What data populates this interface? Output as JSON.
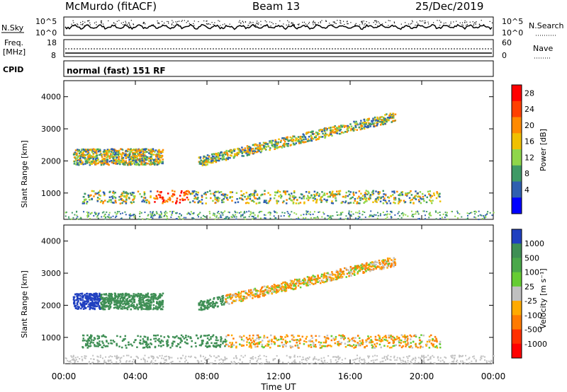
{
  "header": {
    "station": "McMurdo (fitACF)",
    "beam": "Beam 13",
    "date": "25/Dec/2019"
  },
  "labels": {
    "nsky": "N.Sky",
    "nsearch": "N.Search",
    "freq_top": "Freq.",
    "freq_unit": "[MHz]",
    "nave": "Nave",
    "cpid": "CPID",
    "cpid_value": "normal (fast) 151 RF",
    "y_left_top": "10^5",
    "y_left_bottom": "10^0",
    "y_right_top": "10^5",
    "y_right_bottom": "10^0",
    "freq_max": "18",
    "freq_min": "8",
    "nave_max": "60",
    "nave_min": "0"
  },
  "chart_data": [
    {
      "type": "heatmap",
      "title": "Power",
      "ylabel": "Slant Range [km]",
      "xlabel": "Time UT",
      "colorbar_label": "Power [dB]",
      "xticks": [
        "00:00",
        "04:00",
        "08:00",
        "12:00",
        "16:00",
        "20:00",
        "00:00"
      ],
      "xlim_hours": [
        0,
        24
      ],
      "ylim_km": [
        180,
        4500
      ],
      "yticks": [
        1000,
        2000,
        3000,
        4000
      ],
      "colorbar_ticks": [
        "28",
        "24",
        "20",
        "16",
        "12",
        "8",
        "4"
      ],
      "colorbar_colors": [
        "#ff0000",
        "#ff4000",
        "#ff8a00",
        "#f0c000",
        "#8fd64a",
        "#3f9a66",
        "#2f5fb0",
        "#0000ff"
      ]
    },
    {
      "type": "heatmap",
      "title": "Velocity",
      "ylabel": "Slant Range [km]",
      "xlabel": "Time UT",
      "colorbar_label": "Velocity [m s⁻¹]",
      "xticks": [
        "00:00",
        "04:00",
        "08:00",
        "12:00",
        "16:00",
        "20:00",
        "00:00"
      ],
      "xlim_hours": [
        0,
        24
      ],
      "ylim_km": [
        180,
        4500
      ],
      "yticks": [
        1000,
        2000,
        3000,
        4000
      ],
      "colorbar_ticks": [
        "1000",
        "500",
        "100",
        "25",
        "-25",
        "-100",
        "-500",
        "-1000"
      ],
      "colorbar_colors": [
        "#2040c0",
        "#3f8f55",
        "#4aa84a",
        "#66cc33",
        "#c0c0c0",
        "#ffaa00",
        "#ff7a00",
        "#ff3000",
        "#ff0000"
      ]
    }
  ],
  "scatter_bands": [
    {
      "name": "lower-band",
      "t0": 1.0,
      "t1": 21.0,
      "r0": 700,
      "r1": 1100
    },
    {
      "name": "upper-band",
      "t0": 0.5,
      "t1": 5.5,
      "r0": 1900,
      "r1": 2400
    },
    {
      "name": "arc-band",
      "t0": 7.5,
      "t1": 18.5,
      "r0": 2000,
      "r1": 3400
    }
  ]
}
